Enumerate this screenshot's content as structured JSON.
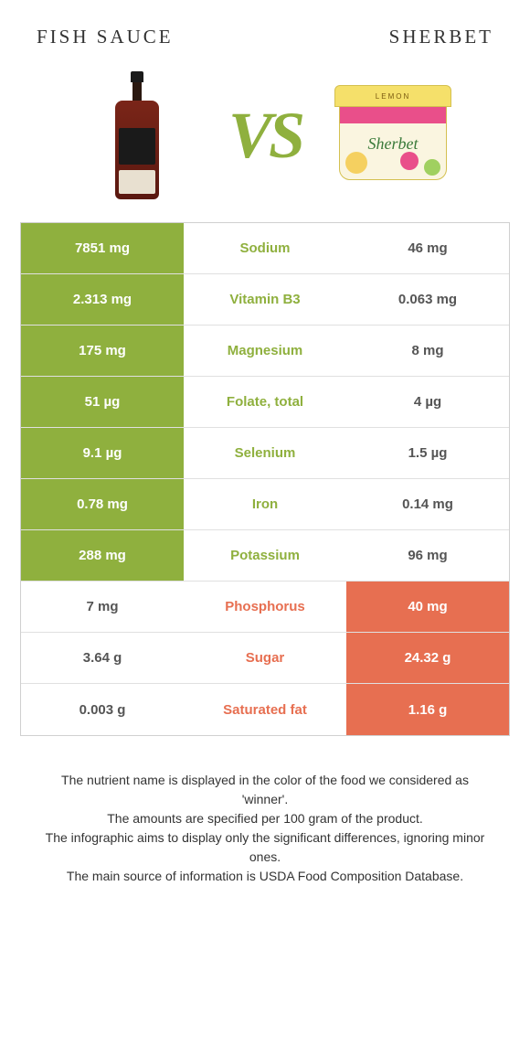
{
  "header": {
    "left_title": "Fish sauce",
    "right_title": "Sherbet",
    "vs_text": "VS"
  },
  "colors": {
    "green": "#8fb03e",
    "orange": "#e76f51",
    "text_dark": "#333333"
  },
  "tub_lid_text": "LEMON",
  "tub_script": "Sherbet",
  "rows": [
    {
      "left": "7851 mg",
      "mid": "Sodium",
      "right": "46 mg",
      "winner": "left"
    },
    {
      "left": "2.313 mg",
      "mid": "Vitamin B3",
      "right": "0.063 mg",
      "winner": "left"
    },
    {
      "left": "175 mg",
      "mid": "Magnesium",
      "right": "8 mg",
      "winner": "left"
    },
    {
      "left": "51 µg",
      "mid": "Folate, total",
      "right": "4 µg",
      "winner": "left"
    },
    {
      "left": "9.1 µg",
      "mid": "Selenium",
      "right": "1.5 µg",
      "winner": "left"
    },
    {
      "left": "0.78 mg",
      "mid": "Iron",
      "right": "0.14 mg",
      "winner": "left"
    },
    {
      "left": "288 mg",
      "mid": "Potassium",
      "right": "96 mg",
      "winner": "left"
    },
    {
      "left": "7 mg",
      "mid": "Phosphorus",
      "right": "40 mg",
      "winner": "right"
    },
    {
      "left": "3.64 g",
      "mid": "Sugar",
      "right": "24.32 g",
      "winner": "right"
    },
    {
      "left": "0.003 g",
      "mid": "Saturated fat",
      "right": "1.16 g",
      "winner": "right"
    }
  ],
  "footer": {
    "line1": "The nutrient name is displayed in the color of the food we considered as 'winner'.",
    "line2": "The amounts are specified per 100 gram of the product.",
    "line3": "The infographic aims to display only the significant differences, ignoring minor ones.",
    "line4": "The main source of information is USDA Food Composition Database."
  }
}
